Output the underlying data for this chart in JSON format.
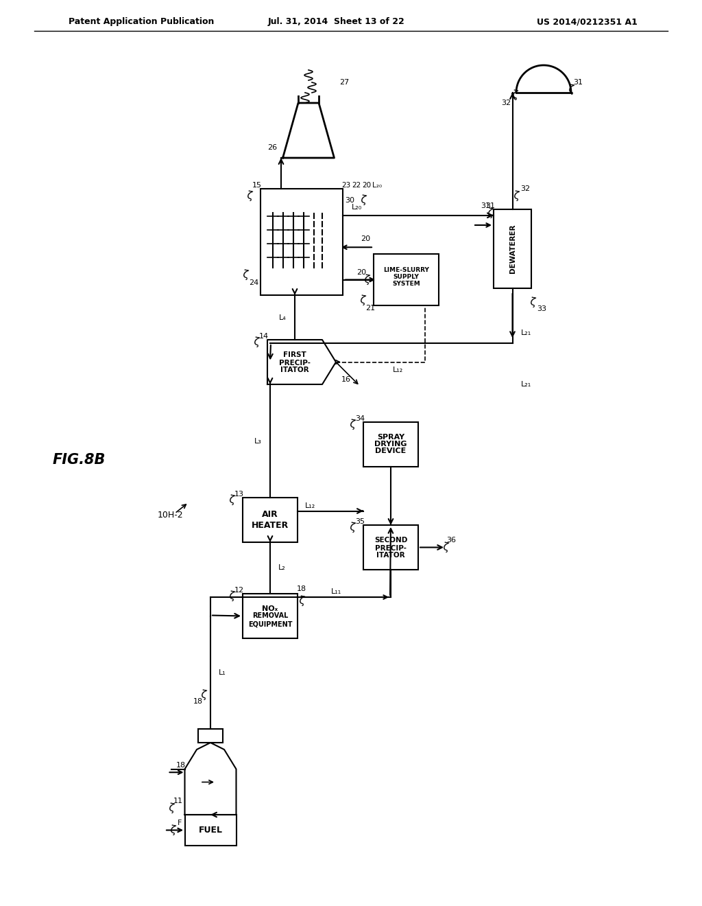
{
  "title_left": "Patent Application Publication",
  "title_mid": "Jul. 31, 2014  Sheet 13 of 22",
  "title_right": "US 2014/0212351 A1",
  "fig_label": "FIG.8B",
  "system_label": "10H-2",
  "background": "#ffffff",
  "line_color": "#000000"
}
